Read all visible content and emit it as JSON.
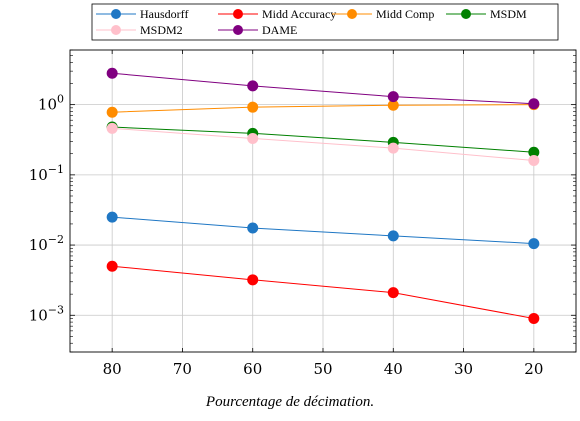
{
  "chart_data": {
    "type": "line",
    "x": [
      80,
      60,
      40,
      20
    ],
    "xlabel": "Pourcentage de décimation.",
    "ylabel": "",
    "xlim": [
      86,
      14
    ],
    "ylim": [
      0.0003,
      6
    ],
    "yscale": "log",
    "x_reversed": true,
    "grid": true,
    "legend_placement": "top",
    "x_ticks": [
      "80",
      "70",
      "60",
      "50",
      "40",
      "30",
      "20"
    ],
    "y_ticks": [
      {
        "base": "10",
        "exp": "0"
      },
      {
        "base": "10",
        "exp": "−1"
      },
      {
        "base": "10",
        "exp": "−2"
      },
      {
        "base": "10",
        "exp": "−3"
      }
    ],
    "series": [
      {
        "name": "Hausdorff",
        "color": "#1f77c4",
        "values": [
          0.025,
          0.0175,
          0.0135,
          0.0105
        ]
      },
      {
        "name": "Midd Accuracy",
        "color": "#ff0000",
        "values": [
          0.005,
          0.0032,
          0.0021,
          0.0009
        ]
      },
      {
        "name": "Midd Comp",
        "color": "#ff8c00",
        "values": [
          0.78,
          0.92,
          0.98,
          1.0
        ]
      },
      {
        "name": "MSDM",
        "color": "#008000",
        "values": [
          0.48,
          0.39,
          0.29,
          0.21
        ]
      },
      {
        "name": "MSDM2",
        "color": "#ffc0cb",
        "values": [
          0.46,
          0.33,
          0.24,
          0.16
        ]
      },
      {
        "name": "DAME",
        "color": "#800080",
        "values": [
          2.8,
          1.85,
          1.3,
          1.03
        ]
      }
    ]
  }
}
